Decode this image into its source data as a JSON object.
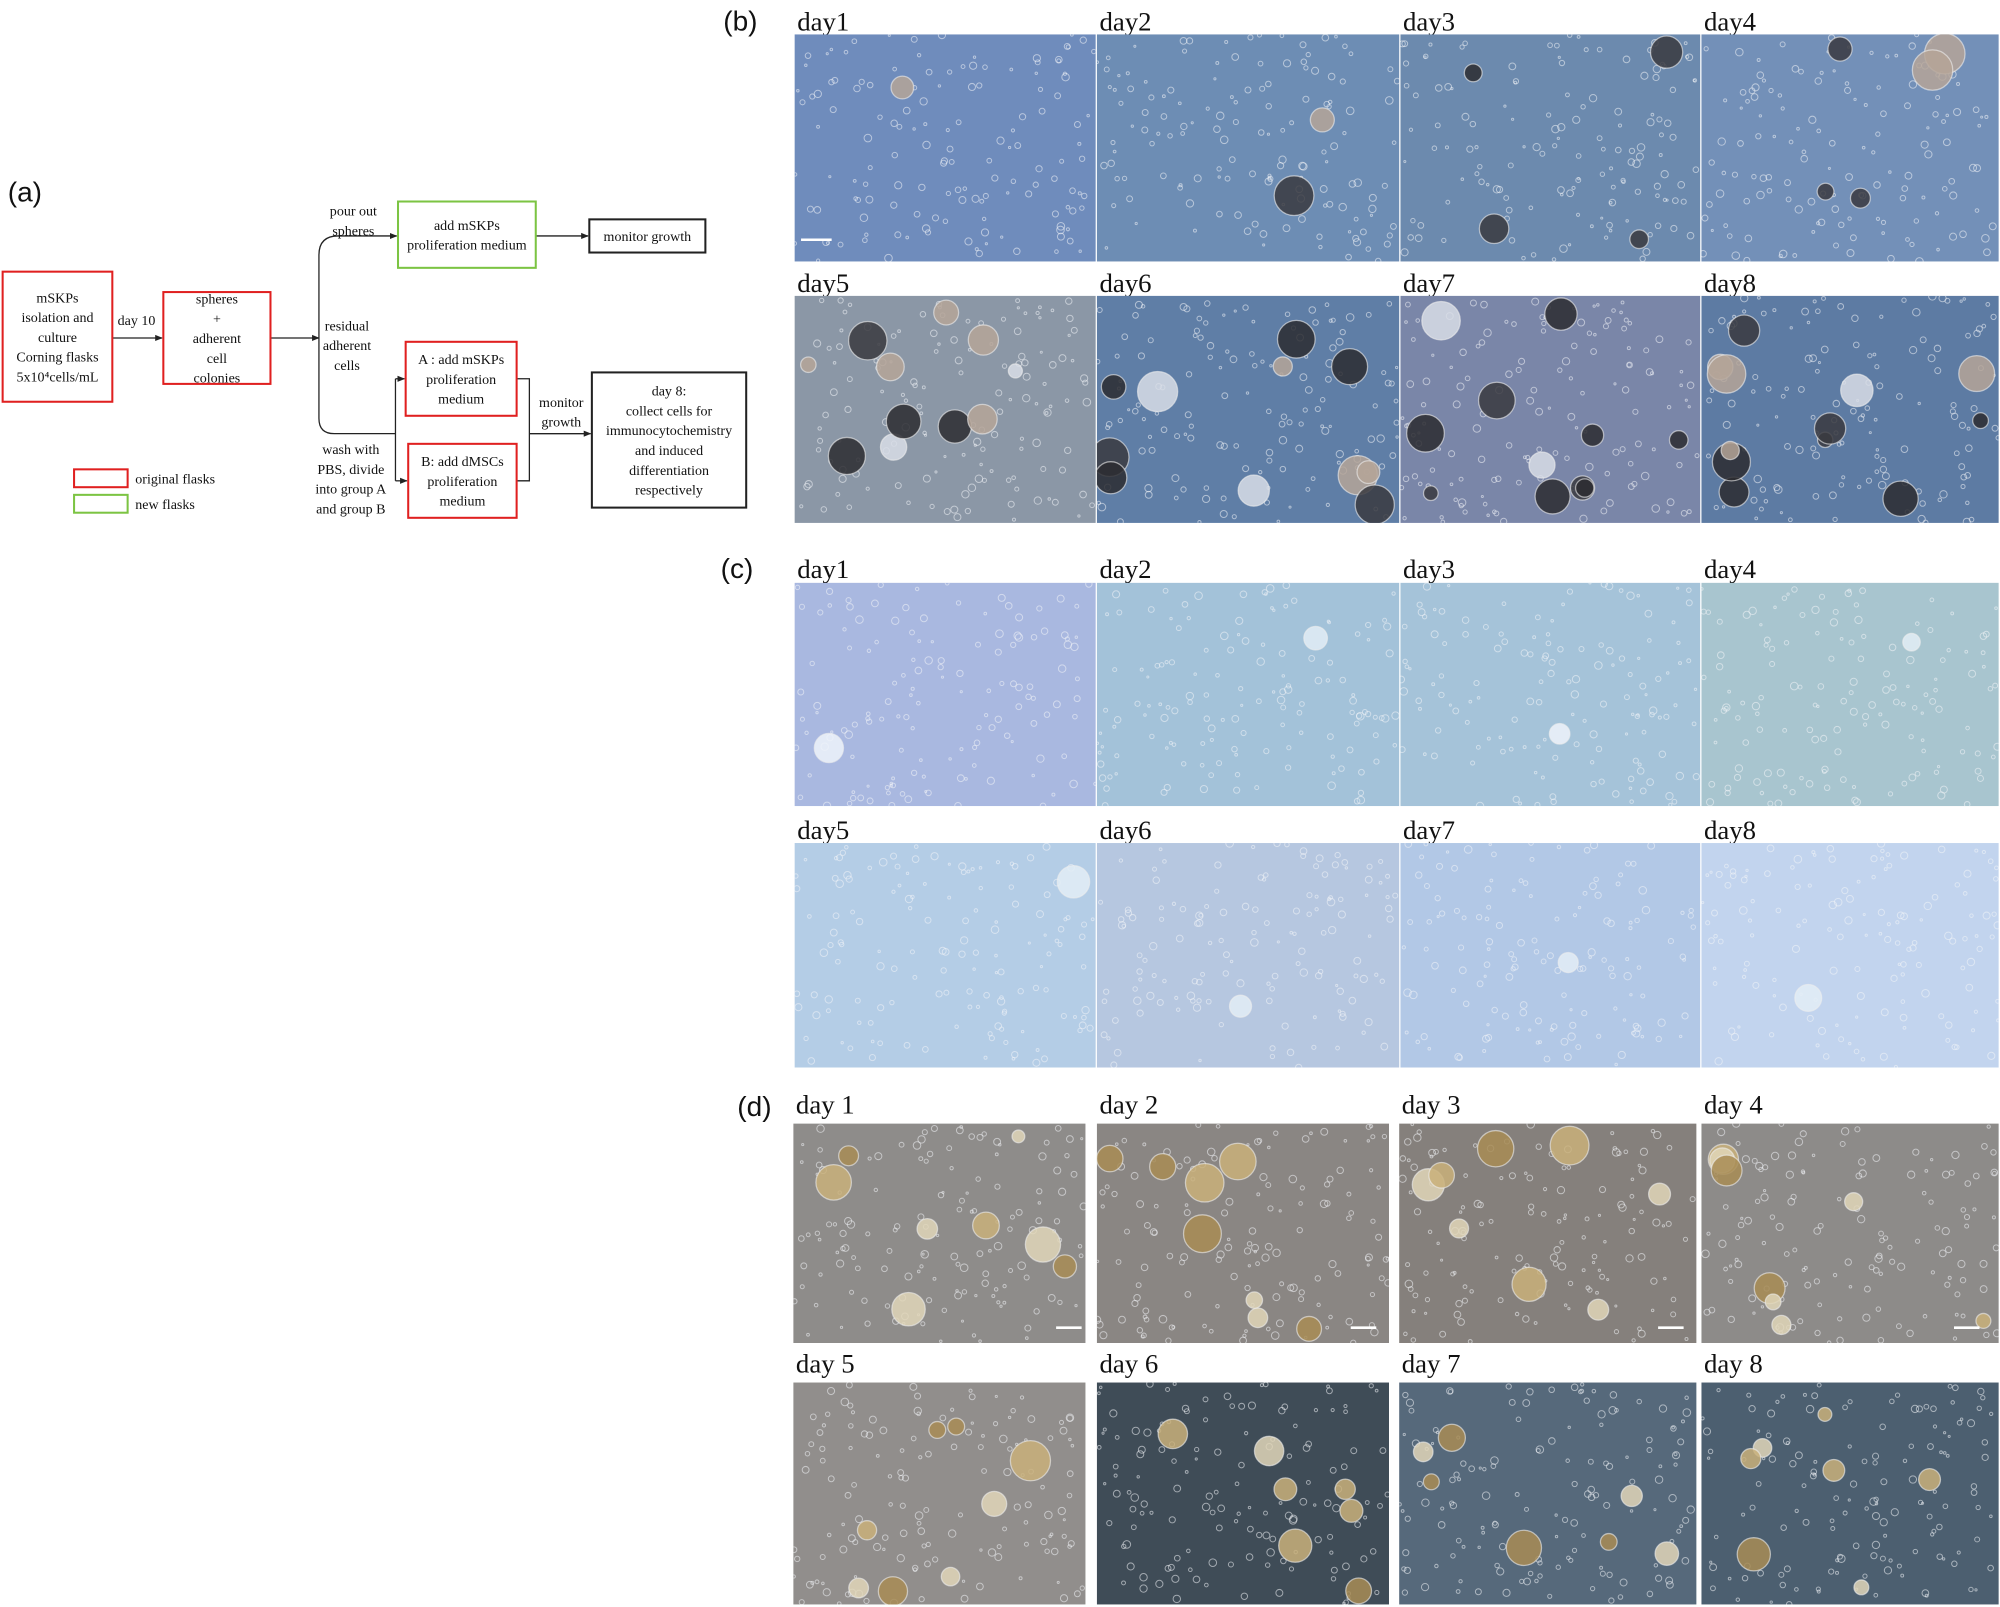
{
  "panels": {
    "a": {
      "label": "(a)",
      "nodes": [
        {
          "lines": [
            "mSKPs",
            "isolation and",
            "culture",
            "Corning flasks",
            "5x10⁴cells/mL"
          ]
        },
        {
          "lines": [
            "spheres",
            "+",
            "adherent",
            "cell",
            "colonies"
          ]
        },
        {
          "lines": [
            "add mSKPs",
            "proliferation medium"
          ]
        },
        {
          "lines": [
            "monitor growth"
          ]
        },
        {
          "lines": [
            "A : add mSKPs",
            "proliferation",
            "medium"
          ]
        },
        {
          "lines": [
            "B: add dMSCs",
            "proliferation",
            "medium"
          ]
        },
        {
          "lines": [
            "day 8:",
            "collect cells for",
            "immunocytochemistry",
            "and induced",
            "differentiation",
            "respectively"
          ]
        }
      ],
      "edge_labels": [
        {
          "lines": [
            "day 10"
          ]
        },
        {
          "lines": [
            "pour out",
            "spheres"
          ]
        },
        {
          "lines": [
            "residual",
            "adherent",
            "cells"
          ]
        },
        {
          "lines": [
            "wash with",
            "PBS, divide",
            "into group A",
            "and group B"
          ]
        },
        {
          "lines": [
            "monitor",
            "growth"
          ]
        }
      ],
      "legend": [
        "original flasks",
        "new flasks"
      ]
    },
    "b": {
      "label": "(b)",
      "days": [
        "day1",
        "day2",
        "day3",
        "day4",
        "day5",
        "day6",
        "day7",
        "day8"
      ]
    },
    "c": {
      "label": "(c)",
      "days": [
        "day1",
        "day2",
        "day3",
        "day4",
        "day5",
        "day6",
        "day7",
        "day8"
      ]
    },
    "d": {
      "label": "(d)",
      "days": [
        "day 1",
        "day 2",
        "day 3",
        "day 4",
        "day 5",
        "day 6",
        "day 7",
        "day 8"
      ]
    }
  }
}
